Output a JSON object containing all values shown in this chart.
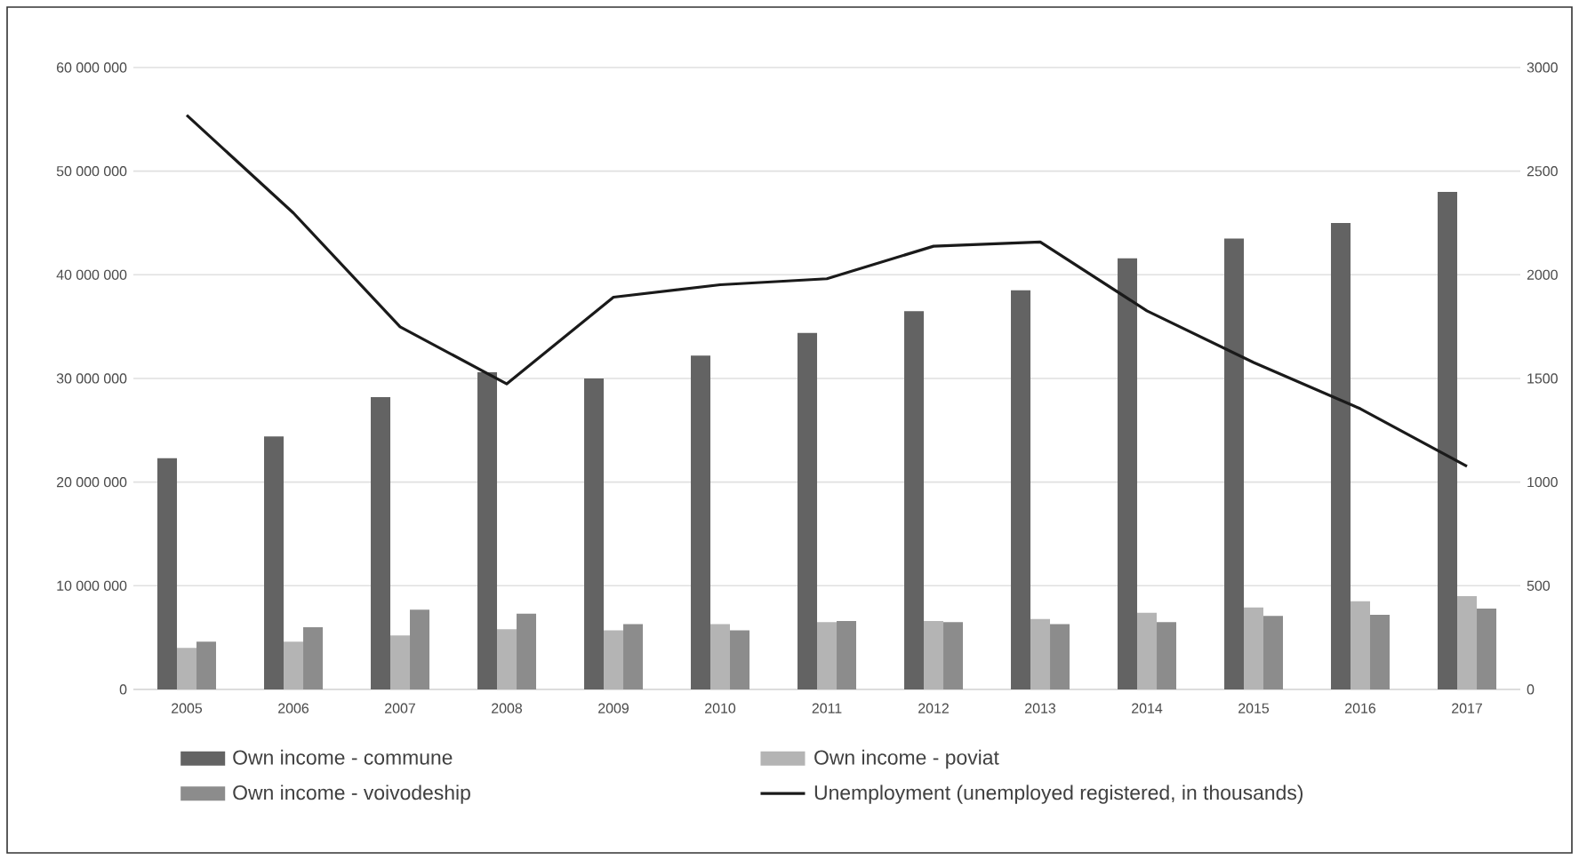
{
  "chart_data": {
    "type": "bar",
    "categories": [
      "2005",
      "2006",
      "2007",
      "2008",
      "2009",
      "2010",
      "2011",
      "2012",
      "2013",
      "2014",
      "2015",
      "2016",
      "2017"
    ],
    "series": [
      {
        "name": "Own income - commune",
        "color": "#636363",
        "values": [
          22300000,
          24400000,
          28200000,
          30600000,
          30000000,
          32200000,
          34400000,
          36500000,
          38500000,
          41600000,
          43500000,
          45000000,
          48000000
        ]
      },
      {
        "name": "Own income - poviat",
        "color": "#b4b4b4",
        "values": [
          4000000,
          4600000,
          5200000,
          5800000,
          5700000,
          6300000,
          6500000,
          6600000,
          6800000,
          7400000,
          7900000,
          8500000,
          9000000
        ]
      },
      {
        "name": "Own income - voivodeship",
        "color": "#8c8c8c",
        "values": [
          4600000,
          6000000,
          7700000,
          7300000,
          6300000,
          5700000,
          6600000,
          6500000,
          6300000,
          6500000,
          7100000,
          7200000,
          7800000
        ]
      },
      {
        "name": "Unemployment (unemployed registered, in thousands)",
        "type": "line",
        "axis": "y2",
        "color": "#1a1a1a",
        "values": [
          2770,
          2298,
          1749,
          1474,
          1892,
          1952,
          1981,
          2138,
          2158,
          1826,
          1577,
          1354,
          1076
        ]
      }
    ],
    "ylim": [
      0,
      60000000
    ],
    "yticks": [
      {
        "value": 0,
        "label": "0"
      },
      {
        "value": 10000000,
        "label": "10 000 000"
      },
      {
        "value": 20000000,
        "label": "20 000 000"
      },
      {
        "value": 30000000,
        "label": "30 000 000"
      },
      {
        "value": 40000000,
        "label": "40 000 000"
      },
      {
        "value": 50000000,
        "label": "50 000 000"
      },
      {
        "value": 60000000,
        "label": "60 000 000"
      }
    ],
    "y2lim": [
      0,
      3000
    ],
    "y2ticks": [
      0,
      500,
      1000,
      1500,
      2000,
      2500,
      3000
    ],
    "grid": "y",
    "legend": "bottom"
  }
}
